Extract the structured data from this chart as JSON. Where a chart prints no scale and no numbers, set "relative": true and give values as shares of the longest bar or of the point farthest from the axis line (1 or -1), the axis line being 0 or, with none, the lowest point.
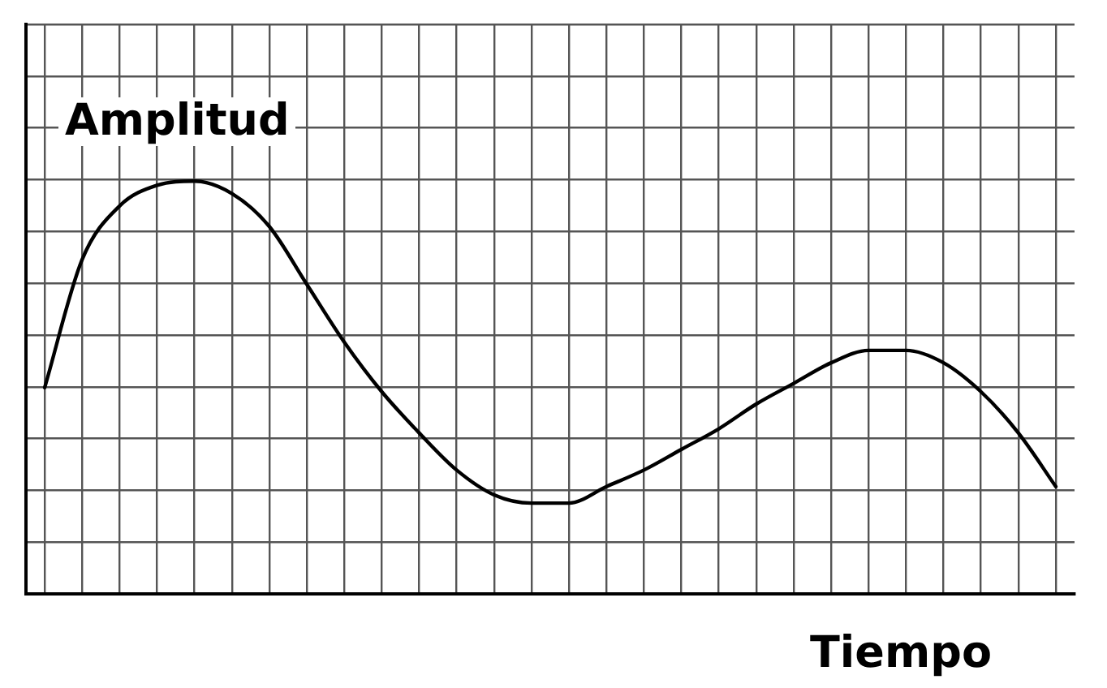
{
  "chart_data": {
    "type": "line",
    "relative": true,
    "xlabel": "Tiempo",
    "ylabel": "Amplitud",
    "grid": true,
    "legend": false,
    "marker": "none",
    "line_style": "solid",
    "categories": [
      null,
      null,
      null,
      null,
      null,
      null,
      null,
      null,
      null,
      null,
      null,
      null,
      null,
      null,
      null,
      null,
      null,
      null,
      null,
      null,
      null,
      null,
      null,
      null,
      null,
      null,
      null,
      null
    ],
    "series": [
      {
        "color": "#000000",
        "values": [
          0.5,
          0.81,
          0.94,
          0.99,
          1,
          0.97,
          0.89,
          0.75,
          0.61,
          0.49,
          0.39,
          0.3,
          0.24,
          0.22,
          0.22,
          0.26,
          0.3,
          0.35,
          0.4,
          0.46,
          0.51,
          0.56,
          0.59,
          0.59,
          0.56,
          0.49,
          0.39,
          0.26
        ]
      }
    ]
  }
}
